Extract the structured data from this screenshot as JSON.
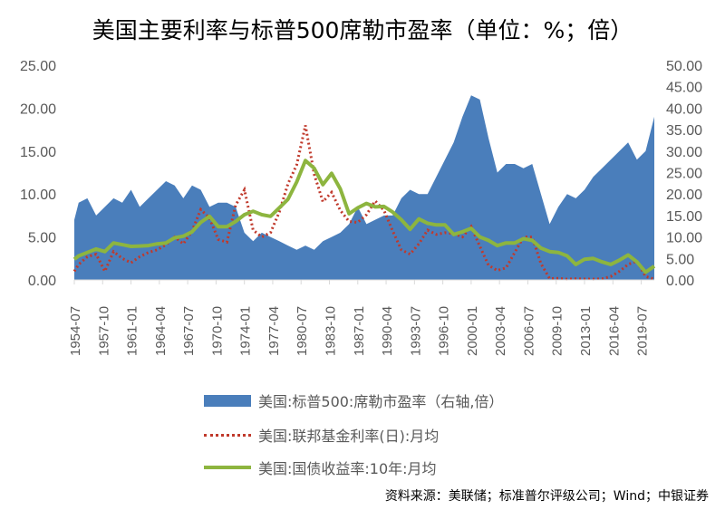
{
  "chart_data": {
    "type": "area+line",
    "title": "美国主要利率与标普500席勒市盈率（单位：%；倍）",
    "y_left": {
      "range": [
        0,
        25
      ],
      "ticks": [
        "0.00",
        "5.00",
        "10.00",
        "15.00",
        "20.00",
        "25.00"
      ]
    },
    "y_right": {
      "range": [
        0,
        50
      ],
      "ticks": [
        "0.00",
        "5.00",
        "10.00",
        "15.00",
        "20.00",
        "25.00",
        "30.00",
        "35.00",
        "40.00",
        "45.00",
        "50.00"
      ]
    },
    "x_range": [
      1954.5,
      2021.0
    ],
    "x_ticks": [
      "1954-07",
      "1957-10",
      "1961-01",
      "1964-04",
      "1967-07",
      "1970-10",
      "1974-01",
      "1977-04",
      "1980-07",
      "1983-10",
      "1987-01",
      "1990-04",
      "1993-07",
      "1996-10",
      "2000-01",
      "2003-04",
      "2006-07",
      "2009-10",
      "2013-01",
      "2016-04",
      "2019-07"
    ],
    "x": [
      1954.5,
      1955,
      1956,
      1957,
      1958,
      1959,
      1960,
      1961,
      1962,
      1963,
      1964,
      1965,
      1966,
      1967,
      1968,
      1969,
      1970,
      1971,
      1972,
      1973,
      1974,
      1975,
      1976,
      1977,
      1978,
      1979,
      1980,
      1981,
      1982,
      1983,
      1984,
      1985,
      1986,
      1987,
      1988,
      1989,
      1990,
      1991,
      1992,
      1993,
      1994,
      1995,
      1996,
      1997,
      1998,
      1999,
      2000,
      2001,
      2002,
      2003,
      2004,
      2005,
      2006,
      2007,
      2008,
      2009,
      2010,
      2011,
      2012,
      2013,
      2014,
      2015,
      2016,
      2017,
      2018,
      2019,
      2020,
      2021
    ],
    "series": [
      {
        "name": "美国:标普500:席勒市盈率（右轴,倍）",
        "axis": "right",
        "style": "area",
        "color": "#4a7ebb",
        "values": [
          14,
          18,
          19,
          15,
          17,
          19,
          18,
          21,
          17,
          19,
          21,
          23,
          22,
          19,
          22,
          21,
          17,
          18,
          18,
          17,
          11,
          9,
          11,
          10,
          9,
          8,
          7,
          8,
          7,
          9,
          10,
          11,
          13,
          17,
          13,
          14,
          15,
          15,
          19,
          21,
          20,
          20,
          24,
          28,
          32,
          38,
          43,
          42,
          33,
          25,
          27,
          27,
          26,
          27,
          20,
          13,
          17,
          20,
          19,
          21,
          24,
          26,
          28,
          30,
          32,
          28,
          30,
          38
        ]
      },
      {
        "name": "美国:联邦基金利率(日):月均",
        "axis": "left",
        "style": "dotted",
        "color": "#c0392b",
        "values": [
          1,
          1.8,
          2.7,
          3,
          1,
          3.3,
          2.5,
          2,
          2.7,
          3.2,
          3.5,
          4.1,
          5,
          4.2,
          5.7,
          8.2,
          7.2,
          4.7,
          4.4,
          8.7,
          10.5,
          5.8,
          5,
          5.5,
          7.9,
          11.2,
          13.4,
          18,
          12.3,
          9.1,
          10.2,
          8.1,
          6.8,
          6.7,
          7.6,
          9.2,
          8.1,
          5.7,
          3.5,
          3,
          4.2,
          5.8,
          5.3,
          5.5,
          5.4,
          5,
          6.2,
          3.9,
          1.7,
          1.1,
          1.4,
          3.2,
          5,
          5,
          1.9,
          0.16,
          0.18,
          0.1,
          0.14,
          0.11,
          0.09,
          0.13,
          0.4,
          1,
          1.8,
          2.2,
          0.4,
          0.08
        ]
      },
      {
        "name": "美国:国债收益率:10年:月均",
        "axis": "left",
        "style": "line",
        "color": "#8db53f",
        "values": [
          2.4,
          2.8,
          3.2,
          3.6,
          3.3,
          4.3,
          4.1,
          3.9,
          3.95,
          4,
          4.2,
          4.3,
          4.9,
          5.1,
          5.6,
          6.7,
          7.4,
          6.2,
          6.2,
          6.8,
          7.6,
          8,
          7.6,
          7.4,
          8.4,
          9.4,
          11.4,
          13.9,
          13,
          11.1,
          12.4,
          10.6,
          7.7,
          8.4,
          8.9,
          8.5,
          8.55,
          7.9,
          7,
          5.9,
          7.1,
          6.6,
          6.4,
          6.4,
          5.3,
          5.6,
          6,
          5,
          4.6,
          4,
          4.3,
          4.3,
          4.8,
          4.6,
          3.7,
          3.3,
          3.2,
          2.8,
          1.8,
          2.4,
          2.5,
          2.1,
          1.8,
          2.3,
          2.9,
          2.1,
          0.9,
          1.6
        ]
      }
    ],
    "legend": "bottom",
    "source": "资料来源：美联储；标准普尔评级公司；Wind；中银证券"
  }
}
